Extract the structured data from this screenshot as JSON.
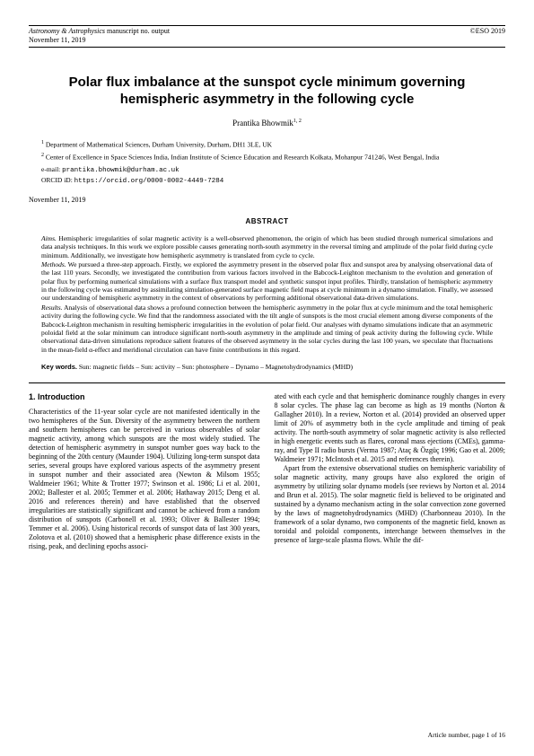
{
  "header": {
    "journal": "Astronomy & Astrophysics",
    "manuscript": " manuscript no. output",
    "date": "November 11, 2019",
    "right": "©ESO 2019"
  },
  "title": "Polar flux imbalance at the sunspot cycle minimum governing hemispheric asymmetry in the following cycle",
  "author": "Prantika Bhowmik",
  "author_affil": "1, 2",
  "affiliations": {
    "a1": "Department of Mathematical Sciences, Durham University, Durham, DH1 3LE, UK",
    "a2": "Center of Excellence in Space Sciences India, Indian Institute of Science Education and Research Kolkata, Mohanpur 741246, West Bengal, India",
    "email_label": "e-mail: ",
    "email": "prantika.bhowmik@durham.ac.uk",
    "orcid_label": "ORCID iD: ",
    "orcid": "https://orcid.org/0000-0002-4449-7284"
  },
  "date2": "November 11, 2019",
  "abstract_heading": "ABSTRACT",
  "abstract": {
    "aims_label": "Aims.",
    "aims": " Hemispheric irregularities of solar magnetic activity is a well-observed phenomenon, the origin of which has been studied through numerical simulations and data analysis techniques. In this work we explore possible causes generating north-south asymmetry in the reversal timing and amplitude of the polar field during cycle minimum. Additionally, we investigate how hemispheric asymmetry is translated from cycle to cycle.",
    "methods_label": "Methods.",
    "methods": " We pursued a three-step approach. Firstly, we explored the asymmetry present in the observed polar flux and sunspot area by analysing observational data of the last 110 years. Secondly, we investigated the contribution from various factors involved in the Babcock-Leighton mechanism to the evolution and generation of polar flux by performing numerical simulations with a surface flux transport model and synthetic sunspot input profiles. Thirdly, translation of hemispheric asymmetry in the following cycle was estimated by assimilating simulation-generated surface magnetic field maps at cycle minimum in a dynamo simulation. Finally, we assessed our understanding of hemispheric asymmetry in the context of observations by performing additional observational data-driven simulations.",
    "results_label": "Results.",
    "results": " Analysis of observational data shows a profound connection between the hemispheric asymmetry in the polar flux at cycle minimum and the total hemispheric activity during the following cycle. We find that the randomness associated with the tilt angle of sunspots is the most crucial element among diverse components of the Babcock-Leighton mechanism in resulting hemispheric irregularities in the evolution of polar field. Our analyses with dynamo simulations indicate that an asymmetric poloidal field at the solar minimum can introduce significant north-south asymmetry in the amplitude and timing of peak activity during the following cycle. While observational data-driven simulations reproduce salient features of the observed asymmetry in the solar cycles during the last 100 years, we speculate that fluctuations in the mean-field α-effect and meridional circulation can have finite contributions in this regard.",
    "keywords_label": "Key words.",
    "keywords": " Sun: magnetic fields – Sun: activity – Sun: photosphere – Dynamo – Magnetohydrodynamics (MHD)"
  },
  "section1_heading": "1. Introduction",
  "body": {
    "col1": "Characteristics of the 11-year solar cycle are not manifested identically in the two hemispheres of the Sun. Diversity of the asymmetry between the northern and southern hemispheres can be perceived in various observables of solar magnetic activity, among which sunspots are the most widely studied. The detection of hemispheric asymmetry in sunspot number goes way back to the beginning of the 20th century (Maunder 1904). Utilizing long-term sunspot data series, several groups have explored various aspects of the asymmetry present in sunspot number and their associated area (Newton & Milsom 1955; Waldmeier 1961; White & Trotter 1977; Swinson et al. 1986; Li et al. 2001, 2002; Ballester et al. 2005; Temmer et al. 2006; Hathaway 2015; Deng et al. 2016 and references therein) and have established that the observed irregularities are statistically significant and cannot be achieved from a random distribution of sunspots (Carbonell et al. 1993; Oliver & Ballester 1994; Temmer et al. 2006). Using historical records of sunspot data of last 300 years, Zolotova et al. (2010) showed that a hemispheric phase difference exists in the rising, peak, and declining epochs associ-",
    "col2a": "ated with each cycle and that hemispheric dominance roughly changes in every 8 solar cycles. The phase lag can become as high as 19 months (Norton & Gallagher 2010). In a review, Norton et al. (2014) provided an observed upper limit of 20% of asymmetry both in the cycle amplitude and timing of peak activity. The north-south asymmetry of solar magnetic activity is also reflected in high energetic events such as flares, coronal mass ejections (CMEs), gamma-ray, and Type II radio bursts (Verma 1987; Ataç & Özgüç 1996; Gao et al. 2009; Waldmeier 1971; McIntosh et al. 2015 and references therein).",
    "col2b": "Apart from the extensive observational studies on hemispheric variability of solar magnetic activity, many groups have also explored the origin of asymmetry by utilizing solar dynamo models (see reviews by Norton et al. 2014 and Brun et al. 2015). The solar magnetic field is believed to be originated and sustained by a dynamo mechanism acting in the solar convection zone governed by the laws of magnetohydrodynamics (MHD) (Charbonneau 2010). In the framework of a solar dynamo, two components of the magnetic field, known as toroidal and poloidal components, interchange between themselves in the presence of large-scale plasma flows. While the dif-"
  },
  "footer": "Article number, page 1 of 16"
}
